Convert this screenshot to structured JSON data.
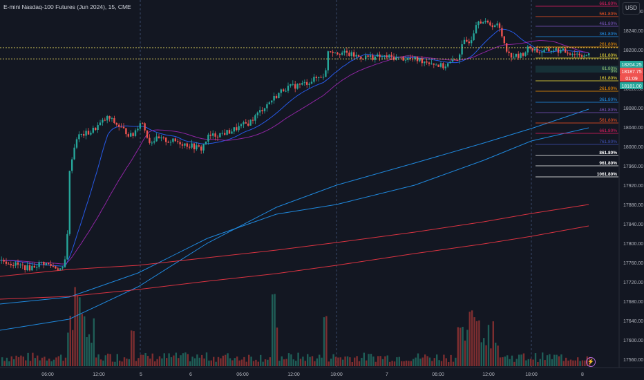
{
  "header": {
    "title": "E-mini Nasdaq-100 Futures (Jun 2024), 15, CME",
    "currency_button": "USD",
    "flash_icon": "lightning-bolt-icon"
  },
  "colors": {
    "background": "#131722",
    "up_candle": "#26a69a",
    "down_candle": "#ef5350",
    "ma_short": "#2962ff",
    "ma_mid": "#9c27b0",
    "ma_long_blue": "#2196f3",
    "ma_long_red": "#f23645"
  },
  "chart_data": {
    "type": "candlestick",
    "instrument": "E-mini Nasdaq-100 Futures (Jun 2024)",
    "timeframe": "15",
    "exchange": "CME",
    "y_ticks": [
      18280,
      18240,
      18200,
      18160,
      18120,
      18080,
      18040,
      18000,
      17960,
      17920,
      17880,
      17840,
      17800,
      17760,
      17720,
      17680,
      17640,
      17600,
      17560
    ],
    "ylim": [
      17535,
      18310
    ],
    "x_ticks": [
      "06:00",
      "12:00",
      "5",
      "6",
      "06:00",
      "12:00",
      "18:00",
      "7",
      "06:00",
      "12:00",
      "18:00",
      "8"
    ],
    "price_labels": [
      {
        "text": "18204.25",
        "color": "#26a69a"
      },
      {
        "text": "18187.75",
        "color": "#ef5350"
      },
      {
        "text": "01:09",
        "color": "#ef5350"
      },
      {
        "text": "18181.00",
        "color": "#26a69a"
      }
    ],
    "fib_levels_upper": [
      {
        "label": "661.80%",
        "color": "#e91e63"
      },
      {
        "label": "561.80%",
        "color": "#ff5722"
      },
      {
        "label": "461.80%",
        "color": "#7e57c2"
      },
      {
        "label": "361.80%",
        "color": "#2196f3"
      },
      {
        "label": "261.80%",
        "color": "#ff9800"
      },
      {
        "label": "161.80%",
        "color": "#ffeb3b"
      }
    ],
    "fib_levels_lower": [
      {
        "label": "161.80%",
        "color": "#ffeb3b"
      },
      {
        "label": "261.80%",
        "color": "#ff9800"
      },
      {
        "label": "361.80%",
        "color": "#2196f3"
      },
      {
        "label": "461.80%",
        "color": "#7e57c2"
      },
      {
        "label": "561.80%",
        "color": "#ff5722"
      },
      {
        "label": "661.80%",
        "color": "#e91e63"
      },
      {
        "label": "761.80%",
        "color": "#3f51b5"
      },
      {
        "label": "861.80%",
        "color": "#ffffff"
      },
      {
        "label": "961.80%",
        "color": "#ffffff"
      },
      {
        "label": "1061.80%",
        "color": "#ffffff"
      }
    ],
    "fib_mid_labels": [
      "61.80%",
      "0%"
    ],
    "grid": false,
    "session_separators": true
  }
}
